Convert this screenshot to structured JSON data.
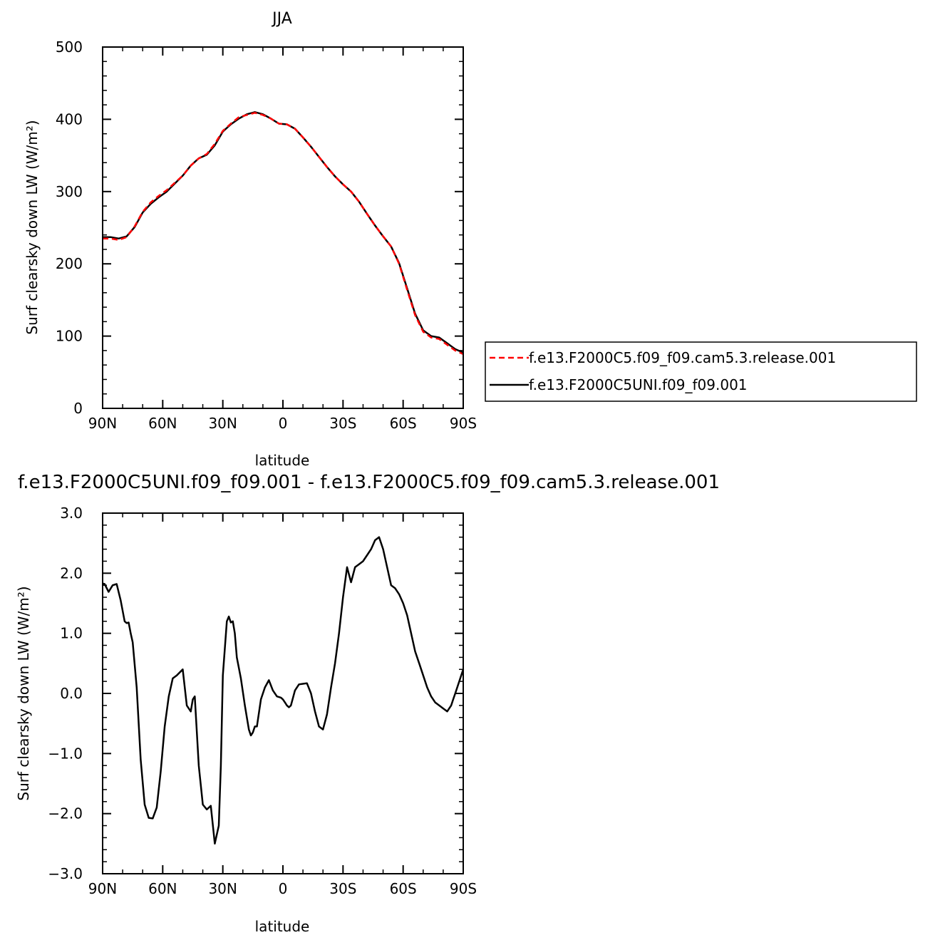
{
  "chart_data": [
    {
      "type": "line",
      "title": "JJA",
      "xlabel": "latitude",
      "ylabel": "Surf clearsky down LW (W/m²)",
      "xlim": [
        90,
        -90
      ],
      "ylim": [
        0,
        500
      ],
      "xticks": [
        {
          "value": 90,
          "label": "90N"
        },
        {
          "value": 60,
          "label": "60N"
        },
        {
          "value": 30,
          "label": "30N"
        },
        {
          "value": 0,
          "label": "0"
        },
        {
          "value": -30,
          "label": "30S"
        },
        {
          "value": -60,
          "label": "60S"
        },
        {
          "value": -90,
          "label": "90S"
        }
      ],
      "yticks": [
        {
          "value": 0,
          "label": "0"
        },
        {
          "value": 100,
          "label": "100"
        },
        {
          "value": 200,
          "label": "200"
        },
        {
          "value": 300,
          "label": "300"
        },
        {
          "value": 400,
          "label": "400"
        },
        {
          "value": 500,
          "label": "500"
        }
      ],
      "legend": "right",
      "series": [
        {
          "name": "f.e13.F2000C5.f09_f09.cam5.3.release.001",
          "color": "#ff0000",
          "dash": "dashed",
          "x": [
            90,
            86,
            82,
            78,
            74,
            70,
            66,
            62,
            58,
            54,
            50,
            46,
            42,
            38,
            34,
            30,
            26,
            22,
            18,
            14,
            10,
            6,
            2,
            -2,
            -6,
            -10,
            -14,
            -18,
            -22,
            -26,
            -30,
            -34,
            -38,
            -42,
            -46,
            -50,
            -54,
            -58,
            -62,
            -66,
            -70,
            -74,
            -78,
            -82,
            -86,
            -90
          ],
          "y": [
            235,
            235,
            233,
            237,
            252,
            272,
            285,
            294,
            302,
            312,
            322,
            336,
            346,
            352,
            366,
            384,
            394,
            403,
            406,
            409,
            406,
            401,
            394,
            393,
            387,
            375,
            362,
            348,
            334,
            321,
            310,
            300,
            286,
            269,
            253,
            238,
            224,
            200,
            164,
            129,
            106,
            98,
            96,
            88,
            80,
            75
          ]
        },
        {
          "name": "f.e13.F2000C5UNI.f09_f09.001",
          "color": "#000000",
          "dash": "solid",
          "x": [
            90,
            86,
            82,
            78,
            74,
            70,
            66,
            62,
            58,
            54,
            50,
            46,
            42,
            38,
            34,
            30,
            26,
            22,
            18,
            14,
            10,
            6,
            2,
            -2,
            -6,
            -10,
            -14,
            -18,
            -22,
            -26,
            -30,
            -34,
            -38,
            -42,
            -46,
            -50,
            -54,
            -58,
            -62,
            -66,
            -70,
            -74,
            -78,
            -82,
            -86,
            -90
          ],
          "y": [
            237,
            237,
            235,
            238,
            251,
            271,
            283,
            292,
            300,
            311,
            322,
            336,
            346,
            351,
            364,
            383,
            393,
            401,
            407,
            410,
            407,
            401,
            394,
            393,
            387,
            375,
            362,
            348,
            334,
            321,
            310,
            300,
            286,
            269,
            253,
            238,
            224,
            201,
            166,
            131,
            108,
            100,
            98,
            90,
            82,
            77
          ]
        }
      ]
    },
    {
      "type": "line",
      "title": "f.e13.F2000C5UNI.f09_f09.001 - f.e13.F2000C5.f09_f09.cam5.3.release.001",
      "xlabel": "latitude",
      "ylabel": "Surf clearsky down LW (W/m²)",
      "xlim": [
        90,
        -90
      ],
      "ylim": [
        -3.0,
        3.0
      ],
      "xticks": [
        {
          "value": 90,
          "label": "90N"
        },
        {
          "value": 60,
          "label": "60N"
        },
        {
          "value": 30,
          "label": "30N"
        },
        {
          "value": 0,
          "label": "0"
        },
        {
          "value": -30,
          "label": "30S"
        },
        {
          "value": -60,
          "label": "60S"
        },
        {
          "value": -90,
          "label": "90S"
        }
      ],
      "yticks": [
        {
          "value": -3.0,
          "label": "−3.0"
        },
        {
          "value": -2.0,
          "label": "−2.0"
        },
        {
          "value": -1.0,
          "label": "−1.0"
        },
        {
          "value": 0.0,
          "label": "0.0"
        },
        {
          "value": 1.0,
          "label": "1.0"
        },
        {
          "value": 2.0,
          "label": "2.0"
        },
        {
          "value": 3.0,
          "label": "3.0"
        }
      ],
      "series": [
        {
          "name": "",
          "color": "#000000",
          "dash": "solid",
          "x": [
            90,
            89,
            87,
            85,
            83,
            81,
            79,
            78,
            77,
            76,
            75,
            73,
            71,
            69,
            67,
            65,
            63,
            61,
            59,
            57,
            55,
            53,
            50,
            48,
            46,
            45,
            44,
            42,
            40,
            38,
            36,
            34,
            32,
            31,
            30,
            28,
            27,
            26,
            25,
            24,
            23,
            21,
            19,
            17,
            16,
            15,
            14,
            13,
            11,
            9,
            7,
            5,
            3,
            1,
            0,
            -1,
            -2,
            -3,
            -4,
            -6,
            -8,
            -10,
            -12,
            -14,
            -16,
            -18,
            -20,
            -22,
            -24,
            -26,
            -28,
            -30,
            -32,
            -34,
            -36,
            -38,
            -40,
            -42,
            -44,
            -46,
            -48,
            -50,
            -52,
            -54,
            -56,
            -58,
            -60,
            -62,
            -64,
            -66,
            -68,
            -70,
            -72,
            -74,
            -76,
            -78,
            -80,
            -82,
            -83,
            -84,
            -85,
            -86,
            -88,
            -90
          ],
          "y": [
            1.83,
            1.82,
            1.69,
            1.8,
            1.82,
            1.55,
            1.2,
            1.17,
            1.18,
            1.0,
            0.85,
            0.1,
            -1.1,
            -1.85,
            -2.07,
            -2.08,
            -1.9,
            -1.3,
            -0.55,
            -0.05,
            0.25,
            0.3,
            0.4,
            -0.2,
            -0.3,
            -0.1,
            -0.05,
            -1.2,
            -1.85,
            -1.93,
            -1.87,
            -2.5,
            -2.2,
            -1.2,
            0.3,
            1.2,
            1.28,
            1.18,
            1.2,
            1.0,
            0.6,
            0.25,
            -0.2,
            -0.6,
            -0.7,
            -0.65,
            -0.55,
            -0.55,
            -0.1,
            0.1,
            0.22,
            0.05,
            -0.05,
            -0.07,
            -0.1,
            -0.15,
            -0.2,
            -0.23,
            -0.2,
            0.05,
            0.15,
            0.16,
            0.17,
            0.0,
            -0.3,
            -0.55,
            -0.6,
            -0.35,
            0.1,
            0.5,
            1.0,
            1.6,
            2.1,
            1.85,
            2.1,
            2.15,
            2.2,
            2.3,
            2.4,
            2.55,
            2.6,
            2.4,
            2.1,
            1.8,
            1.75,
            1.65,
            1.5,
            1.3,
            1.0,
            0.7,
            0.5,
            0.3,
            0.1,
            -0.05,
            -0.15,
            -0.2,
            -0.25,
            -0.3,
            -0.25,
            -0.2,
            -0.1,
            0.0,
            0.2,
            0.4
          ]
        }
      ]
    }
  ]
}
